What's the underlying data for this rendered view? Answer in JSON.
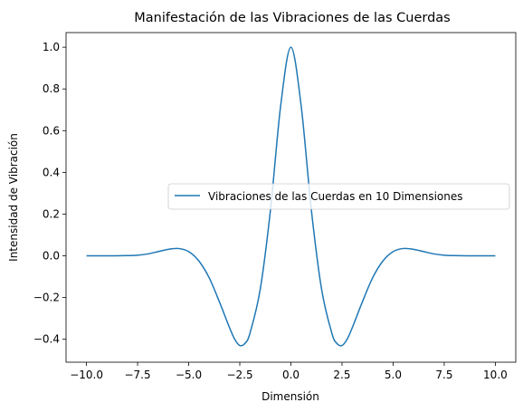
{
  "chart_data": {
    "type": "line",
    "title": "Manifestación de las Vibraciones de las Cuerdas",
    "xlabel": "Dimensión",
    "ylabel": "Intensidad de Vibración",
    "xlim": [
      -11.0,
      11.0
    ],
    "ylim": [
      -0.51,
      1.07
    ],
    "xticks": [
      -10.0,
      -7.5,
      -5.0,
      -2.5,
      0.0,
      2.5,
      5.0,
      7.5,
      10.0
    ],
    "xtick_labels": [
      "−10.0",
      "−7.5",
      "−5.0",
      "−2.5",
      "0.0",
      "2.5",
      "5.0",
      "7.5",
      "10.0"
    ],
    "yticks": [
      -0.4,
      -0.2,
      0.0,
      0.2,
      0.4,
      0.6,
      0.8,
      1.0
    ],
    "ytick_labels": [
      "−0.4",
      "−0.2",
      "0.0",
      "0.2",
      "0.4",
      "0.6",
      "0.8",
      "1.0"
    ],
    "grid": false,
    "legend_position": "center-right",
    "series": [
      {
        "name": "Vibraciones de las Cuerdas en 10 Dimensiones",
        "color": "#1f77b4",
        "x": [
          -10,
          -9,
          -8,
          -7.5,
          -7,
          -6.5,
          -6,
          -5.5,
          -5,
          -4.5,
          -4,
          -3.5,
          -3,
          -2.75,
          -2.5,
          -2.25,
          -2,
          -1.5,
          -1,
          -0.5,
          0,
          0.5,
          1,
          1.5,
          2,
          2.25,
          2.5,
          2.75,
          3,
          3.5,
          4,
          4.5,
          5,
          5.5,
          6,
          6.5,
          7,
          7.5,
          8,
          9,
          10
        ],
        "y": [
          0.0,
          0.0,
          0.001,
          0.003,
          0.009,
          0.02,
          0.031,
          0.035,
          0.02,
          -0.025,
          -0.105,
          -0.22,
          -0.345,
          -0.4,
          -0.43,
          -0.42,
          -0.37,
          -0.16,
          0.22,
          0.72,
          1.0,
          0.72,
          0.22,
          -0.16,
          -0.37,
          -0.42,
          -0.43,
          -0.4,
          -0.345,
          -0.22,
          -0.105,
          -0.025,
          0.02,
          0.035,
          0.031,
          0.02,
          0.009,
          0.003,
          0.001,
          0.0,
          0.0
        ]
      }
    ]
  }
}
